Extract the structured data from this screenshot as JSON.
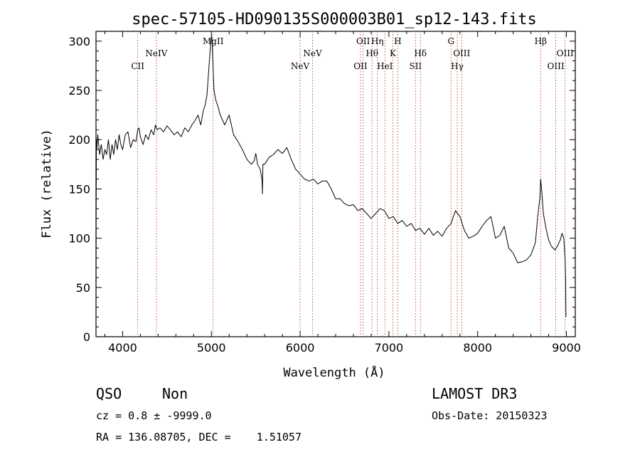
{
  "chart_data": {
    "type": "line",
    "title": "spec-57105-HD090135S000003B01_sp12-143.fits",
    "xlabel": "Wavelength (Å)",
    "ylabel": "Flux (relative)",
    "xlim": [
      3700,
      9100
    ],
    "ylim": [
      0,
      310
    ],
    "x_ticks": [
      4000,
      5000,
      6000,
      7000,
      8000,
      9000
    ],
    "y_ticks": [
      0,
      50,
      100,
      150,
      200,
      250,
      300
    ],
    "series": [
      {
        "x": [
          3700,
          3702,
          3705,
          3708,
          3720,
          3740,
          3760,
          3780,
          3800,
          3820,
          3840,
          3860,
          3880,
          3900,
          3920,
          3940,
          3960,
          3980,
          4000,
          4030,
          4060,
          4090,
          4120,
          4150,
          4170,
          4185,
          4200,
          4230,
          4260,
          4290,
          4320,
          4350,
          4370,
          4390,
          4420,
          4460,
          4500,
          4540,
          4580,
          4620,
          4660,
          4700,
          4740,
          4780,
          4820,
          4850,
          4880,
          4910,
          4930,
          4950,
          4970,
          4985,
          4995,
          5003,
          5010,
          5020,
          5030,
          5050,
          5070,
          5100,
          5150,
          5200,
          5250,
          5300,
          5350,
          5400,
          5450,
          5480,
          5500,
          5520,
          5550,
          5570,
          5575,
          5580,
          5600,
          5650,
          5700,
          5750,
          5800,
          5850,
          5900,
          5950,
          6000,
          6050,
          6100,
          6150,
          6200,
          6250,
          6300,
          6350,
          6400,
          6450,
          6500,
          6550,
          6600,
          6650,
          6700,
          6750,
          6800,
          6850,
          6900,
          6950,
          7000,
          7050,
          7100,
          7150,
          7200,
          7250,
          7300,
          7350,
          7400,
          7450,
          7500,
          7550,
          7600,
          7650,
          7700,
          7750,
          7800,
          7850,
          7900,
          7950,
          8000,
          8050,
          8100,
          8150,
          8200,
          8250,
          8300,
          8350,
          8400,
          8450,
          8500,
          8550,
          8600,
          8650,
          8680,
          8700,
          8710,
          8720,
          8740,
          8770,
          8800,
          8830,
          8850,
          8870,
          8900,
          8930,
          8950,
          8970,
          8985,
          8990,
          8995
        ],
        "y": [
          0,
          130,
          200,
          190,
          205,
          185,
          195,
          180,
          190,
          185,
          200,
          180,
          195,
          185,
          200,
          190,
          205,
          195,
          190,
          205,
          208,
          192,
          200,
          198,
          210,
          212,
          203,
          195,
          205,
          200,
          210,
          205,
          215,
          210,
          212,
          208,
          214,
          210,
          205,
          208,
          203,
          212,
          208,
          215,
          220,
          225,
          215,
          230,
          235,
          245,
          270,
          290,
          300,
          305,
          295,
          270,
          250,
          240,
          235,
          225,
          215,
          225,
          205,
          198,
          190,
          180,
          175,
          178,
          186,
          175,
          170,
          160,
          145,
          175,
          175,
          182,
          185,
          190,
          186,
          192,
          180,
          170,
          165,
          160,
          158,
          160,
          155,
          158,
          158,
          150,
          140,
          140,
          135,
          133,
          134,
          128,
          130,
          125,
          120,
          125,
          130,
          128,
          120,
          122,
          115,
          118,
          112,
          115,
          108,
          110,
          104,
          110,
          103,
          107,
          102,
          110,
          115,
          128,
          122,
          108,
          100,
          102,
          105,
          112,
          118,
          122,
          100,
          103,
          112,
          90,
          85,
          75,
          76,
          78,
          83,
          95,
          125,
          140,
          160,
          150,
          125,
          110,
          98,
          92,
          90,
          88,
          92,
          98,
          105,
          100,
          80,
          60,
          20
        ]
      }
    ],
    "lines": [
      {
        "label": "CII",
        "x": 4170,
        "row": "low"
      },
      {
        "label": "NeIV",
        "x": 4380,
        "row": "mid"
      },
      {
        "label": "MgII",
        "x": 5020,
        "row": "top"
      },
      {
        "label": "NeV",
        "x": 6000,
        "row": "low"
      },
      {
        "label": "NeV",
        "x": 6140,
        "row": "mid"
      },
      {
        "label": "OII",
        "x": 6680,
        "row": "low"
      },
      {
        "label": "OII",
        "x": 6710,
        "row": "top"
      },
      {
        "label": "Hθ",
        "x": 6810,
        "row": "mid"
      },
      {
        "label": "Hη",
        "x": 6870,
        "row": "top"
      },
      {
        "label": "HeI",
        "x": 6955,
        "row": "low"
      },
      {
        "label": "K",
        "x": 7045,
        "row": "mid"
      },
      {
        "label": "H",
        "x": 7100,
        "row": "top"
      },
      {
        "label": "SII",
        "x": 7300,
        "row": "low"
      },
      {
        "label": "Hδ",
        "x": 7355,
        "row": "mid"
      },
      {
        "label": "G",
        "x": 7700,
        "row": "top"
      },
      {
        "label": "Hγ",
        "x": 7770,
        "row": "low"
      },
      {
        "label": "OIII",
        "x": 7820,
        "row": "mid"
      },
      {
        "label": "Hβ",
        "x": 8710,
        "row": "top"
      },
      {
        "label": "OIII",
        "x": 8880,
        "row": "low"
      },
      {
        "label": "OIII",
        "x": 8985,
        "row": "mid"
      }
    ]
  },
  "info": {
    "class": "QSO",
    "subclass": "Non",
    "survey": "LAMOST DR3",
    "cz": "cz = 0.8 ± -9999.0",
    "obsdate": "Obs-Date: 20150323",
    "radec": "RA = 136.08705, DEC =    1.51057"
  },
  "colors": {
    "spectrum": "#000000",
    "line_marker": "#c0392b"
  }
}
